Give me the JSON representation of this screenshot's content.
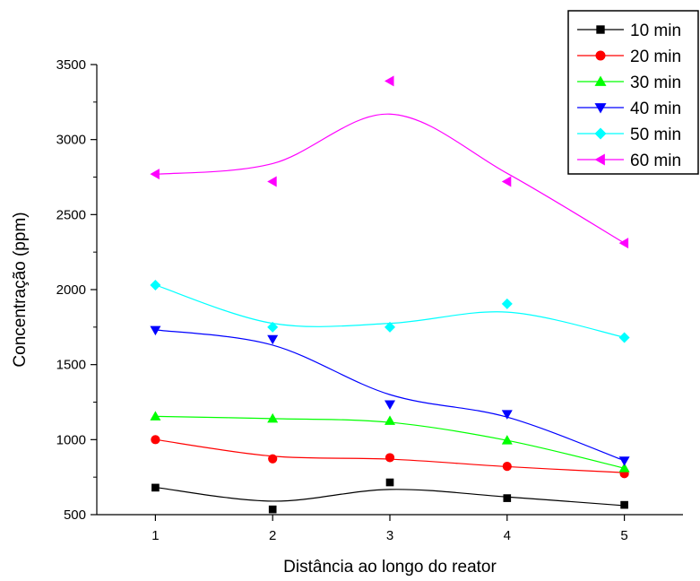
{
  "chart_data": {
    "type": "scatter",
    "title": "",
    "xlabel": "Distância ao longo do reator",
    "ylabel": "Concentração (ppm)",
    "x": [
      1,
      2,
      3,
      4,
      5
    ],
    "xlim": [
      0.5,
      5.5
    ],
    "ylim": [
      500,
      3500
    ],
    "xticks": [
      "1",
      "2",
      "3",
      "4",
      "5"
    ],
    "yticks": [
      "500",
      "1000",
      "1500",
      "2000",
      "2500",
      "3000",
      "3500"
    ],
    "grid": false,
    "legend_position": "top-right",
    "fit_lines": "smooth spline through points",
    "series": [
      {
        "name": "10 min",
        "color": "#000000",
        "marker": "square",
        "values": [
          680,
          535,
          715,
          610,
          565
        ],
        "fit": [
          682,
          590,
          668,
          618,
          560
        ]
      },
      {
        "name": "20 min",
        "color": "#ff0000",
        "marker": "circle",
        "values": [
          1000,
          872,
          880,
          822,
          773
        ],
        "fit": [
          1000,
          890,
          870,
          820,
          780
        ]
      },
      {
        "name": "30 min",
        "color": "#00ff00",
        "marker": "triangle-up",
        "values": [
          1155,
          1140,
          1125,
          995,
          810
        ],
        "fit": [
          1155,
          1140,
          1115,
          995,
          810
        ]
      },
      {
        "name": "40 min",
        "color": "#0000ff",
        "marker": "triangle-down",
        "values": [
          1730,
          1670,
          1235,
          1170,
          860
        ],
        "fit": [
          1732,
          1630,
          1300,
          1150,
          860
        ]
      },
      {
        "name": "50 min",
        "color": "#00ffff",
        "marker": "diamond",
        "values": [
          2030,
          1750,
          1750,
          1905,
          1680
        ],
        "fit": [
          2030,
          1775,
          1775,
          1850,
          1682
        ]
      },
      {
        "name": "60 min",
        "color": "#ff00ff",
        "marker": "triangle-left",
        "values": [
          2770,
          2720,
          3390,
          2720,
          2310
        ],
        "fit": [
          2768,
          2840,
          3170,
          2775,
          2310
        ]
      }
    ]
  }
}
